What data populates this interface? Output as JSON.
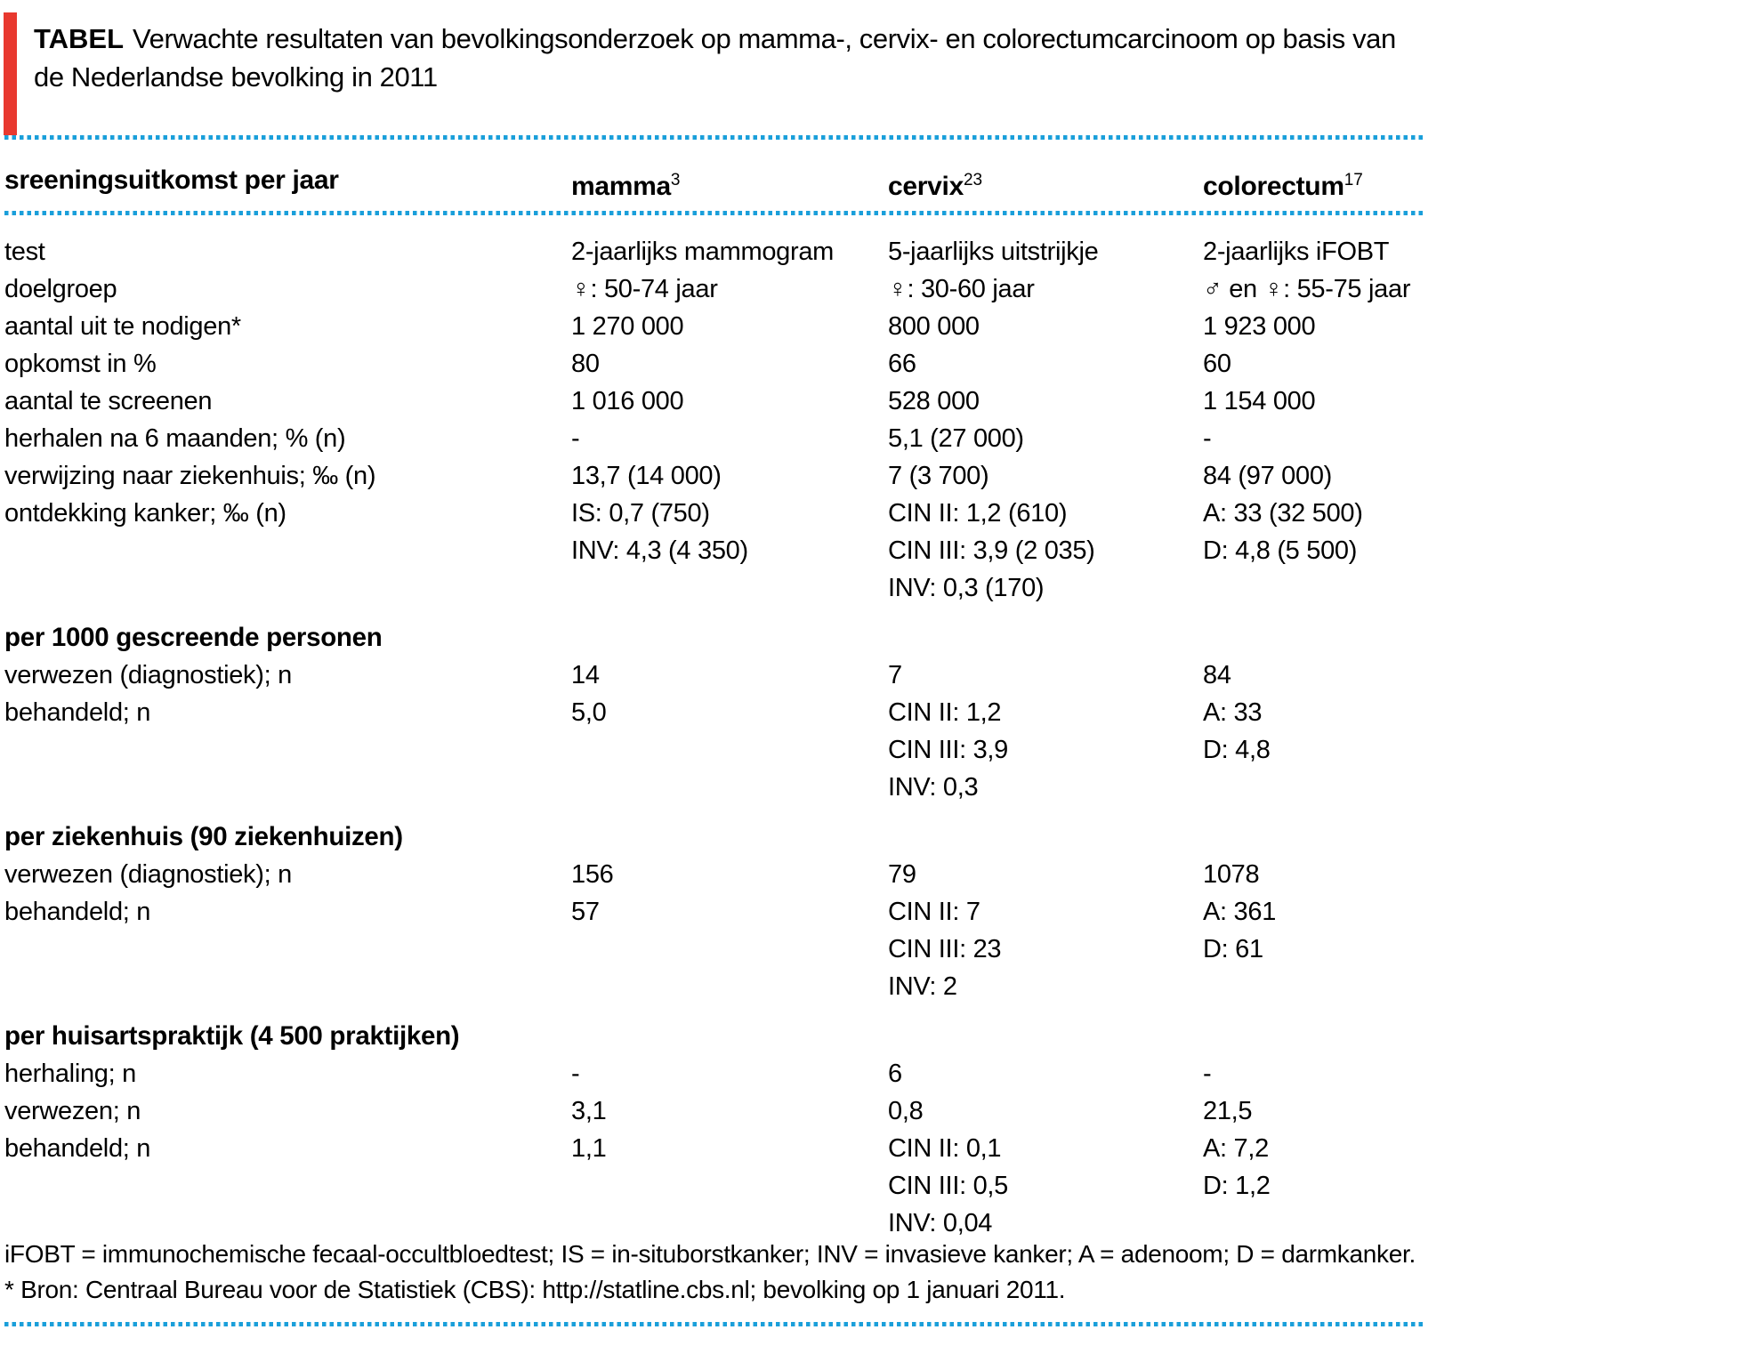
{
  "page": {
    "title_label": "TABEL",
    "title_text": "Verwachte resultaten van bevolkingsonderzoek op mamma-, cervix- en colorectumcarcinoom op basis van de Nederlandse bevolking in 2011"
  },
  "colors": {
    "accent_red": "#e8392f",
    "dot_blue": "#1a9fda",
    "text_black": "#000000"
  },
  "table": {
    "header": {
      "row_label": "sreeningsuitkomst per jaar",
      "columns": [
        {
          "name": "mamma",
          "superscript": "3"
        },
        {
          "name": "cervix",
          "superscript": "23"
        },
        {
          "name": "colorectum",
          "superscript": "17"
        }
      ]
    },
    "sections": [
      {
        "heading": "",
        "rows": [
          {
            "label": "test",
            "cells": [
              [
                "2-jaarlijks mammogram"
              ],
              [
                "5-jaarlijks uitstrijkje"
              ],
              [
                "2-jaarlijks iFOBT"
              ]
            ]
          },
          {
            "label": "doelgroep",
            "cells": [
              [
                "♀: 50-74 jaar"
              ],
              [
                "♀: 30-60 jaar"
              ],
              [
                "♂ en ♀: 55-75 jaar"
              ]
            ]
          },
          {
            "label": "aantal uit te nodigen*",
            "cells": [
              [
                "1 270 000"
              ],
              [
                "800 000"
              ],
              [
                "1 923 000"
              ]
            ]
          },
          {
            "label": "opkomst in %",
            "cells": [
              [
                "80"
              ],
              [
                "66"
              ],
              [
                "60"
              ]
            ]
          },
          {
            "label": "aantal te screenen",
            "cells": [
              [
                "1 016 000"
              ],
              [
                "528 000"
              ],
              [
                "1 154 000"
              ]
            ]
          },
          {
            "label": "herhalen na 6 maanden; % (n)",
            "cells": [
              [
                "-"
              ],
              [
                "5,1 (27 000)"
              ],
              [
                "-"
              ]
            ]
          },
          {
            "label": "verwijzing naar ziekenhuis; ‰ (n)",
            "cells": [
              [
                "13,7 (14 000)"
              ],
              [
                "7 (3 700)"
              ],
              [
                "84 (97 000)"
              ]
            ]
          },
          {
            "label": "ontdekking kanker; ‰ (n)",
            "cells": [
              [
                "IS: 0,7 (750)",
                "INV: 4,3 (4 350)"
              ],
              [
                "CIN II: 1,2 (610)",
                "CIN III: 3,9 (2 035)",
                "INV: 0,3 (170)"
              ],
              [
                "A: 33 (32 500)",
                "D: 4,8 (5 500)"
              ]
            ]
          }
        ]
      },
      {
        "heading": "per 1000 gescreende personen",
        "rows": [
          {
            "label": "verwezen (diagnostiek); n",
            "cells": [
              [
                "14"
              ],
              [
                "7"
              ],
              [
                "84"
              ]
            ]
          },
          {
            "label": "behandeld; n",
            "cells": [
              [
                "5,0"
              ],
              [
                "CIN II: 1,2",
                "CIN III: 3,9",
                "INV: 0,3"
              ],
              [
                "A: 33",
                "D: 4,8"
              ]
            ]
          }
        ]
      },
      {
        "heading": "per ziekenhuis (90 ziekenhuizen)",
        "rows": [
          {
            "label": "verwezen (diagnostiek); n",
            "cells": [
              [
                "156"
              ],
              [
                "79"
              ],
              [
                "1078"
              ]
            ]
          },
          {
            "label": "behandeld; n",
            "cells": [
              [
                "57"
              ],
              [
                "CIN II: 7",
                "CIN III: 23",
                "INV: 2"
              ],
              [
                "A: 361",
                "D: 61"
              ]
            ]
          }
        ]
      },
      {
        "heading": "per huisartspraktijk (4 500 praktijken)",
        "rows": [
          {
            "label": "herhaling; n",
            "cells": [
              [
                "-"
              ],
              [
                "6"
              ],
              [
                "-"
              ]
            ]
          },
          {
            "label": "verwezen; n",
            "cells": [
              [
                "3,1"
              ],
              [
                "0,8"
              ],
              [
                "21,5"
              ]
            ]
          },
          {
            "label": "behandeld; n",
            "cells": [
              [
                "1,1"
              ],
              [
                "CIN II: 0,1",
                "CIN III: 0,5",
                "INV: 0,04"
              ],
              [
                "A: 7,2",
                "D: 1,2"
              ]
            ]
          }
        ]
      }
    ]
  },
  "footnotes": {
    "abbreviations": "iFOBT = immunochemische fecaal-occultbloedtest; IS = in-situborstkanker; INV = invasieve kanker; A = adenoom; D = darmkanker.",
    "source": "* Bron: Centraal Bureau voor de Statistiek (CBS): http://statline.cbs.nl; bevolking op 1 januari 2011."
  }
}
